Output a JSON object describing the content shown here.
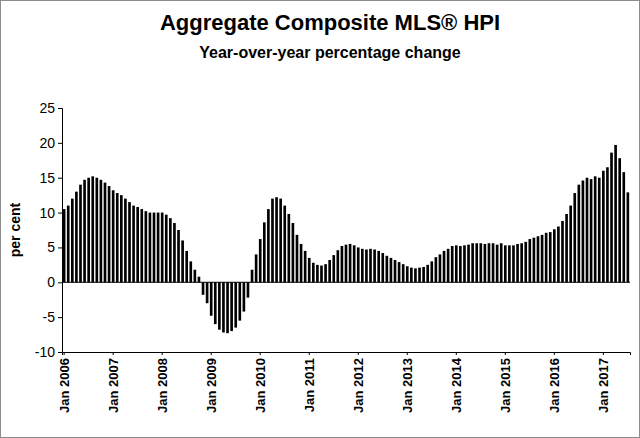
{
  "chart_data": {
    "type": "bar",
    "title": "Aggregate Composite MLS® HPI",
    "subtitle": "Year-over-year percentage change",
    "y_label": "per cent",
    "color": "#000000",
    "categories": [
      "Jan 2006",
      null,
      null,
      null,
      null,
      null,
      null,
      null,
      null,
      null,
      null,
      null,
      "Jan 2007",
      null,
      null,
      null,
      null,
      null,
      null,
      null,
      null,
      null,
      null,
      null,
      "Jan 2008",
      null,
      null,
      null,
      null,
      null,
      null,
      null,
      null,
      null,
      null,
      null,
      "Jan 2009",
      null,
      null,
      null,
      null,
      null,
      null,
      null,
      null,
      null,
      null,
      null,
      "Jan 2010",
      null,
      null,
      null,
      null,
      null,
      null,
      null,
      null,
      null,
      null,
      null,
      "Jan 2011",
      null,
      null,
      null,
      null,
      null,
      null,
      null,
      null,
      null,
      null,
      null,
      "Jan 2012",
      null,
      null,
      null,
      null,
      null,
      null,
      null,
      null,
      null,
      null,
      null,
      "Jan 2013",
      null,
      null,
      null,
      null,
      null,
      null,
      null,
      null,
      null,
      null,
      null,
      "Jan 2014",
      null,
      null,
      null,
      null,
      null,
      null,
      null,
      null,
      null,
      null,
      null,
      "Jan 2015",
      null,
      null,
      null,
      null,
      null,
      null,
      null,
      null,
      null,
      null,
      null,
      "Jan 2016",
      null,
      null,
      null,
      null,
      null,
      null,
      null,
      null,
      null,
      null,
      null,
      "Jan 2017",
      null,
      null,
      null,
      null,
      null,
      null
    ],
    "values": [
      10.5,
      11.0,
      12.0,
      13.0,
      14.0,
      14.7,
      15.0,
      15.2,
      15.0,
      14.7,
      14.3,
      13.8,
      13.2,
      12.8,
      12.5,
      12.0,
      11.5,
      11.0,
      10.8,
      10.5,
      10.2,
      10.0,
      10.0,
      10.0,
      10.0,
      9.7,
      9.2,
      8.5,
      7.5,
      6.0,
      4.5,
      3.0,
      1.8,
      0.8,
      -1.8,
      -3.0,
      -4.8,
      -6.0,
      -6.8,
      -7.2,
      -7.3,
      -7.0,
      -6.5,
      -5.5,
      -4.2,
      -2.2,
      1.8,
      4.0,
      6.2,
      8.6,
      10.5,
      12.0,
      12.2,
      12.0,
      11.0,
      9.8,
      8.5,
      6.8,
      5.5,
      4.5,
      3.5,
      2.8,
      2.5,
      2.4,
      2.6,
      3.2,
      3.9,
      4.6,
      5.2,
      5.4,
      5.5,
      5.3,
      5.0,
      4.8,
      4.7,
      4.8,
      4.7,
      4.5,
      4.2,
      3.8,
      3.5,
      3.2,
      2.9,
      2.6,
      2.3,
      2.1,
      2.0,
      2.1,
      2.2,
      2.5,
      3.0,
      3.6,
      4.0,
      4.5,
      4.8,
      5.2,
      5.3,
      5.2,
      5.3,
      5.4,
      5.6,
      5.6,
      5.6,
      5.5,
      5.6,
      5.6,
      5.4,
      5.6,
      5.3,
      5.3,
      5.3,
      5.5,
      5.6,
      5.8,
      6.2,
      6.4,
      6.6,
      6.8,
      7.1,
      7.2,
      7.6,
      8.0,
      8.8,
      9.8,
      11.0,
      12.8,
      14.0,
      14.6,
      15.0,
      14.8,
      15.2,
      15.0,
      16.0,
      16.5,
      18.6,
      19.7,
      17.8,
      15.8,
      12.9
    ],
    "ylim": [
      -10,
      25
    ],
    "yticks": [
      -10,
      -5,
      0,
      5,
      10,
      15,
      20,
      25
    ],
    "grid": false
  }
}
